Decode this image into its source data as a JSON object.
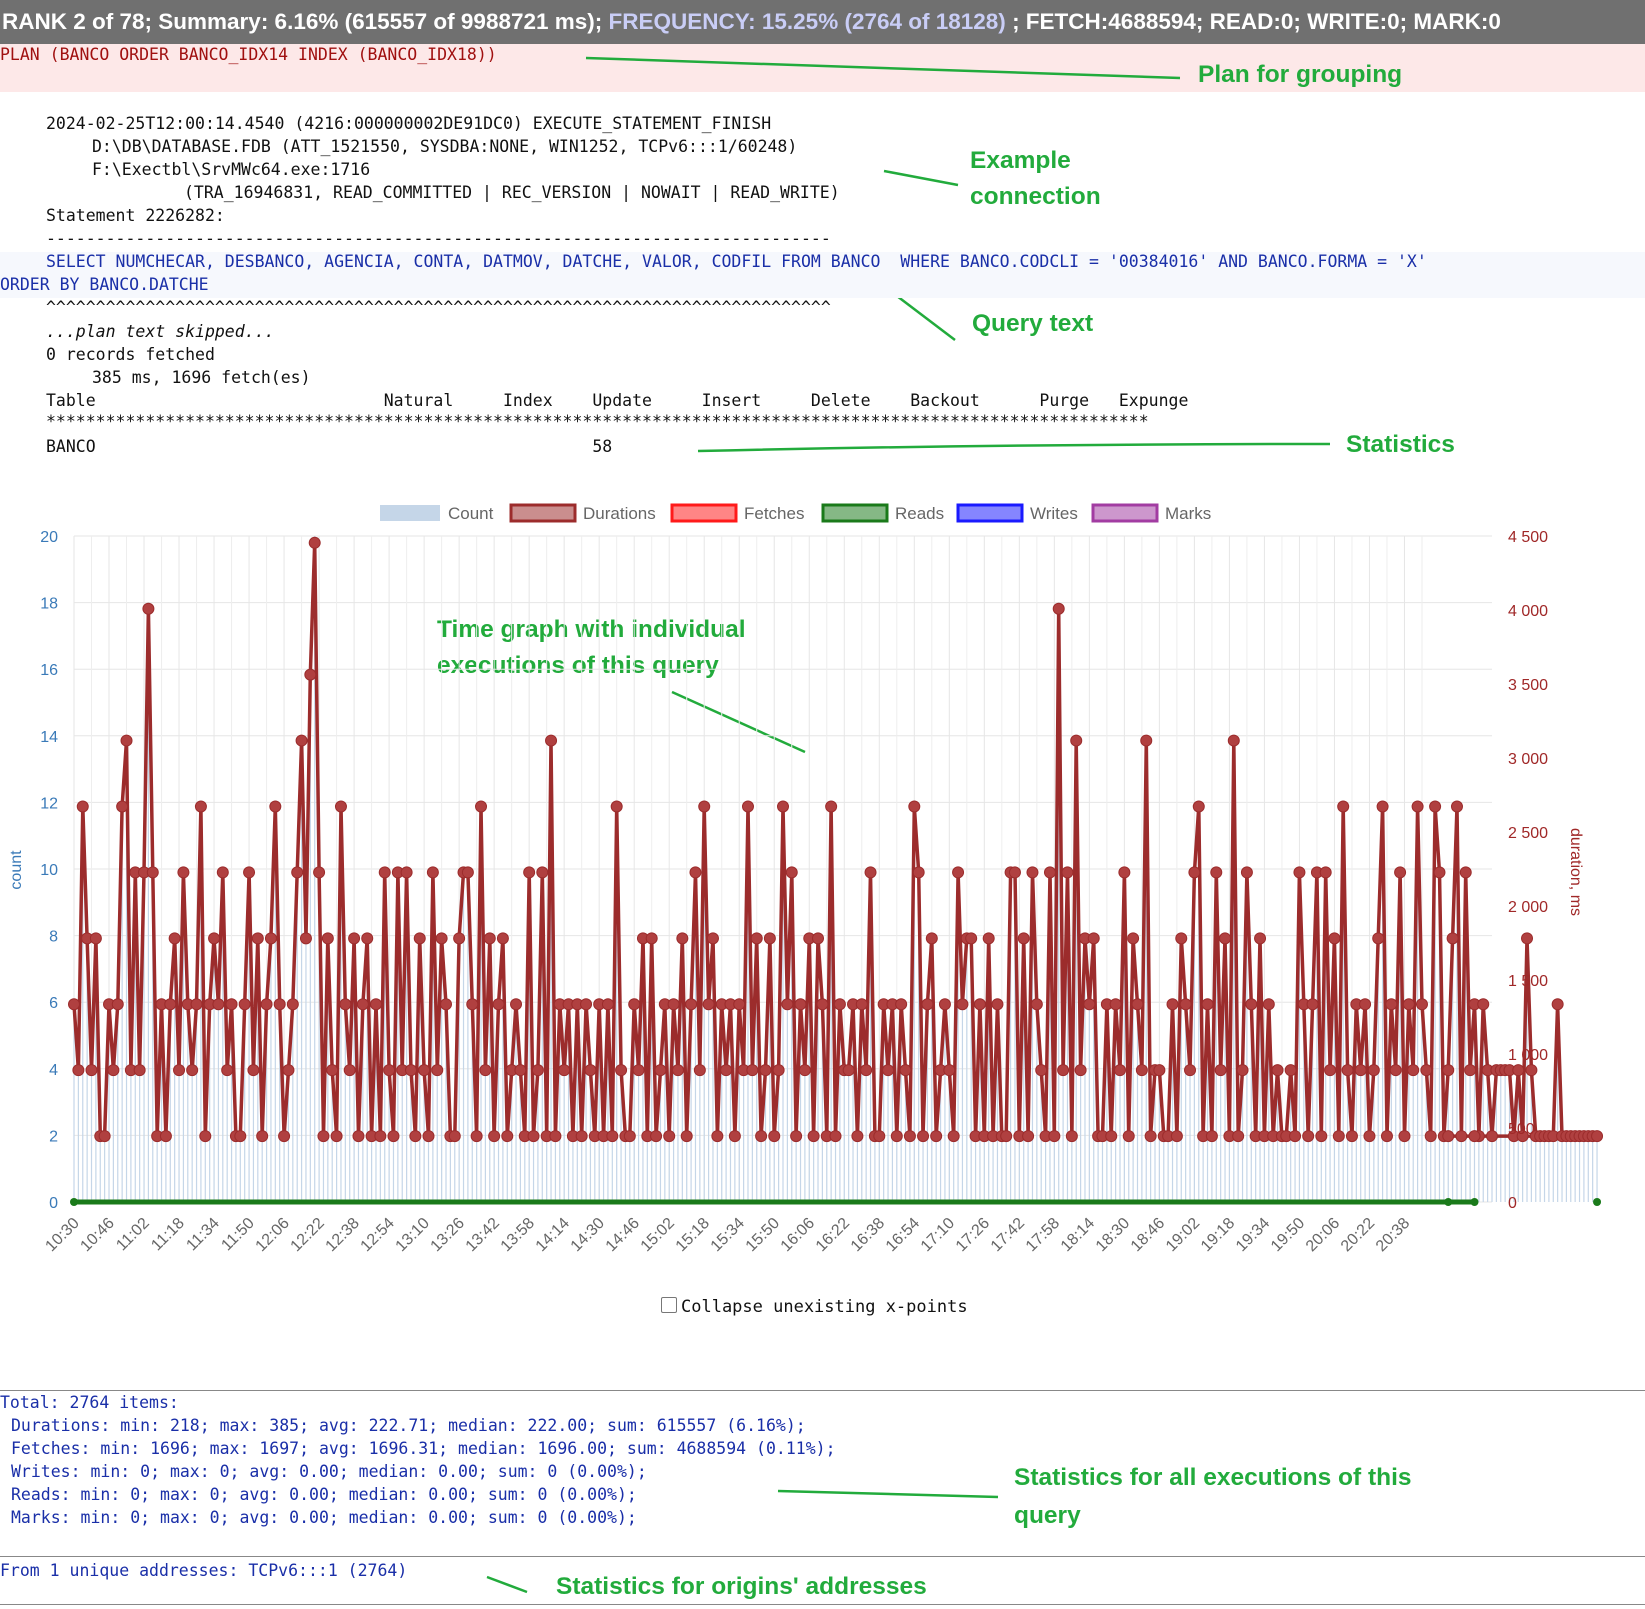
{
  "header": {
    "rank": "RANK 2 of 78; Summary: 6.16% (615557 of 9988721 ms);",
    "frequency": "FREQUENCY: 15.25% (2764 of 18128)",
    "rest": "; FETCH:4688594; READ:0; WRITE:0; MARK:0"
  },
  "plan": "PLAN (BANCO ORDER BANCO_IDX14 INDEX (BANCO_IDX18))",
  "notes": {
    "plan": "Plan for grouping",
    "connection_1": "Example",
    "connection_2": "connection",
    "query": "Query text",
    "statistics": "Statistics",
    "timegraph_1": "Time graph with individual",
    "timegraph_2": "executions of this query",
    "allstats_1": "Statistics for all executions of this",
    "allstats_2": "query",
    "origins": "Statistics for origins' addresses"
  },
  "trace": {
    "line1": "2024-02-25T12:00:14.4540 (4216:000000002DE91DC0) EXECUTE_STATEMENT_FINISH",
    "line2": "D:\\DB\\DATABASE.FDB (ATT_1521550, SYSDBA:NONE, WIN1252, TCPv6:::1/60248)",
    "line3": "F:\\Exectbl\\SrvMWc64.exe:1716",
    "line4": "(TRA_16946831, READ_COMMITTED | REC_VERSION | NOWAIT | READ_WRITE)",
    "line5": "Statement 2226282:",
    "dashes": "-------------------------------------------------------------------------------",
    "sql1": "SELECT NUMCHECAR, DESBANCO, AGENCIA, CONTA, DATMOV, DATCHE, VALOR, CODFIL FROM BANCO  WHERE BANCO.CODCLI = '00384016' AND BANCO.FORMA = 'X'",
    "sql2": "ORDER BY BANCO.DATCHE",
    "carets": "^^^^^^^^^^^^^^^^^^^^^^^^^^^^^^^^^^^^^^^^^^^^^^^^^^^^^^^^^^^^^^^^^^^^^^^^^^^^^^^",
    "skipped": "...plan text skipped...",
    "fetched": "0 records fetched",
    "timing": "385 ms, 1696 fetch(es)",
    "stats_header": "Table                             Natural     Index    Update     Insert     Delete    Backout      Purge   Expunge",
    "stars": "***************************************************************************************************************",
    "stats_row": "BANCO                                                  58"
  },
  "chart_data": {
    "type": "line",
    "title": "",
    "legend": [
      "Count",
      "Durations",
      "Fetches",
      "Reads",
      "Writes",
      "Marks"
    ],
    "legend_colors": {
      "Count": "#c5d6e8",
      "Durations": "#9c2c2c",
      "Fetches": "#ff1a1a",
      "Reads": "#1a7a1a",
      "Writes": "#1a1aff",
      "Marks": "#a23ca2"
    },
    "legend_position": "top",
    "y_left_label": "count",
    "y_right_label": "duration, ms",
    "y_left_ticks": [
      "0",
      "2",
      "4",
      "6",
      "8",
      "10",
      "12",
      "14",
      "16",
      "18",
      "20"
    ],
    "y_right_ticks": [
      "0",
      "500",
      "1 000",
      "1 500",
      "2 000",
      "2 500",
      "3 000",
      "3 500",
      "4 000",
      "4 500"
    ],
    "ylim_left": [
      0,
      20
    ],
    "ylim_right": [
      0,
      4500
    ],
    "x_ticks": [
      "10:30",
      "10:46",
      "11:02",
      "11:18",
      "11:34",
      "11:50",
      "12:06",
      "12:22",
      "12:38",
      "12:54",
      "13:10",
      "13:26",
      "13:42",
      "13:58",
      "14:14",
      "14:30",
      "14:46",
      "15:02",
      "15:18",
      "15:34",
      "15:50",
      "16:06",
      "16:22",
      "16:38",
      "16:54",
      "17:10",
      "17:26",
      "17:42",
      "17:58",
      "18:14",
      "18:30",
      "18:46",
      "19:02",
      "19:18",
      "19:34",
      "19:50",
      "20:06",
      "20:22",
      "20:38"
    ],
    "grid": true,
    "x_start": "10:30",
    "x_step_minutes": 2,
    "count_series": [
      6,
      4,
      12,
      8,
      4,
      8,
      2,
      2,
      6,
      4,
      6,
      12,
      14,
      4,
      10,
      4,
      10,
      18,
      10,
      2,
      6,
      2,
      6,
      8,
      4,
      10,
      6,
      4,
      6,
      12,
      2,
      6,
      8,
      6,
      10,
      4,
      6,
      2,
      2,
      6,
      10,
      4,
      8,
      2,
      6,
      8,
      12,
      6,
      2,
      4,
      6,
      10,
      14,
      8,
      16,
      20,
      10,
      2,
      8,
      4,
      2,
      12,
      6,
      4,
      8,
      2,
      6,
      8,
      2,
      6,
      2,
      10,
      4,
      2,
      10,
      4,
      10,
      4,
      2,
      8,
      4,
      2,
      10,
      4,
      8,
      6,
      2,
      2,
      8,
      10,
      10,
      6,
      2,
      12,
      4,
      8,
      2,
      6,
      8,
      2,
      4,
      6,
      4,
      2,
      10,
      2,
      4,
      10,
      2,
      14,
      2,
      6,
      4,
      6,
      2,
      6,
      2,
      6,
      4,
      2,
      6,
      2,
      6,
      2,
      12,
      4,
      2,
      2,
      6,
      4,
      8,
      2,
      8,
      2,
      4,
      6,
      2,
      6,
      4,
      8,
      2,
      6,
      10,
      4,
      12,
      6,
      8,
      2,
      6,
      4,
      6,
      2,
      6,
      4,
      12,
      4,
      8,
      2,
      4,
      8,
      2,
      4,
      12,
      6,
      10,
      2,
      6,
      4,
      8,
      2,
      8,
      6,
      2,
      12,
      2,
      6,
      4,
      4,
      6,
      2,
      6,
      4,
      10,
      2,
      2,
      6,
      4,
      6,
      2,
      6,
      4,
      2,
      12,
      10,
      2,
      6,
      8,
      2,
      4,
      6,
      4,
      2,
      10,
      6,
      8,
      8,
      2,
      6,
      2,
      8,
      2,
      6,
      2,
      2,
      10,
      10,
      2,
      8,
      2,
      10,
      6,
      4,
      2,
      10,
      2,
      18,
      4,
      10,
      2,
      14,
      4,
      8,
      6,
      8,
      2,
      2,
      6,
      2,
      6,
      4,
      10,
      2,
      8,
      6,
      4,
      14,
      2,
      4,
      4,
      2,
      2,
      6,
      2,
      8,
      6,
      4,
      10,
      12,
      2,
      6,
      2,
      10,
      4,
      8,
      2,
      14,
      2,
      4,
      10,
      6,
      2,
      8,
      2,
      6,
      2,
      4,
      2,
      2,
      4,
      2,
      10,
      6,
      2,
      6,
      10,
      2,
      10,
      4,
      8,
      2,
      12,
      4,
      2,
      6,
      4,
      6,
      2,
      4,
      8,
      12,
      2,
      6,
      4,
      10,
      2,
      6,
      4,
      12,
      6,
      4,
      2,
      12,
      10,
      2,
      4,
      8,
      12,
      2,
      10,
      4,
      6,
      2,
      6,
      4,
      2,
      4,
      4,
      4,
      4,
      2,
      4,
      2,
      8,
      4,
      2,
      2,
      2,
      2,
      2,
      6,
      2,
      2,
      2,
      2,
      2,
      2,
      2,
      2,
      2
    ],
    "fetches_series": "1696 per execution (≈0 on count axis)",
    "reads_series": 0,
    "writes_series": 0,
    "marks_series": 0
  },
  "collapse_label": "Collapse unexisting x-points",
  "totals": {
    "total": "Total: 2764 items:",
    "durations": "Durations: min: 218; max: 385; avg: 222.71; median: 222.00; sum: 615557 (6.16%);",
    "fetches": "Fetches: min: 1696; max: 1697; avg: 1696.31; median: 1696.00; sum: 4688594 (0.11%);",
    "writes": "Writes: min: 0; max: 0; avg: 0.00; median: 0.00; sum: 0 (0.00%);",
    "reads": "Reads: min: 0; max: 0; avg: 0.00; median: 0.00; sum: 0 (0.00%);",
    "marks": "Marks: min: 0; max: 0; avg: 0.00; median: 0.00; sum: 0 (0.00%);"
  },
  "origins": "From 1 unique addresses: TCPv6:::1 (2764)"
}
